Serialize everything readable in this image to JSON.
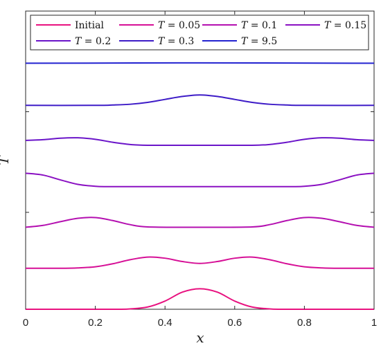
{
  "chart_data": {
    "type": "line",
    "xlabel": "x",
    "ylabel": "T",
    "xlim": [
      0,
      1
    ],
    "ylim": [
      0,
      8.0
    ],
    "x_ticks": [
      "0",
      "0.2",
      "0.4",
      "0.6",
      "0.8",
      "1"
    ],
    "y_tick_values": [
      2.6,
      5.3
    ],
    "grid": false,
    "legend_position": "top",
    "series": [
      {
        "name": "Initial",
        "color": "#e8117f",
        "x": [
          0,
          0.25,
          0.3,
          0.35,
          0.4,
          0.45,
          0.5,
          0.55,
          0.6,
          0.65,
          0.7,
          0.75,
          1
        ],
        "y": [
          0.0,
          0.0,
          0.01,
          0.06,
          0.22,
          0.46,
          0.55,
          0.46,
          0.22,
          0.06,
          0.01,
          0.0,
          0.0
        ]
      },
      {
        "name": "T = 0.05",
        "color": "#d60f96",
        "x": [
          0,
          0.1,
          0.15,
          0.2,
          0.25,
          0.3,
          0.35,
          0.4,
          0.45,
          0.5,
          0.55,
          0.6,
          0.65,
          0.7,
          0.75,
          0.8,
          0.85,
          0.9,
          1
        ],
        "y": [
          1.1,
          1.1,
          1.11,
          1.14,
          1.22,
          1.33,
          1.4,
          1.37,
          1.28,
          1.23,
          1.28,
          1.37,
          1.4,
          1.33,
          1.22,
          1.14,
          1.11,
          1.1,
          1.1
        ]
      },
      {
        "name": "T = 0.1",
        "color": "#b40fb0",
        "x": [
          0,
          0.05,
          0.1,
          0.15,
          0.2,
          0.25,
          0.3,
          0.35,
          0.5,
          0.65,
          0.7,
          0.75,
          0.8,
          0.85,
          0.9,
          0.95,
          1
        ],
        "y": [
          2.2,
          2.25,
          2.35,
          2.44,
          2.46,
          2.38,
          2.27,
          2.21,
          2.2,
          2.21,
          2.27,
          2.38,
          2.46,
          2.44,
          2.35,
          2.25,
          2.2
        ]
      },
      {
        "name": "T = 0.15",
        "color": "#8a10c2",
        "x": [
          0,
          0.05,
          0.1,
          0.15,
          0.2,
          0.25,
          0.5,
          0.75,
          0.8,
          0.85,
          0.9,
          0.95,
          1
        ],
        "y": [
          3.65,
          3.6,
          3.47,
          3.35,
          3.3,
          3.29,
          3.29,
          3.29,
          3.3,
          3.35,
          3.47,
          3.6,
          3.65
        ]
      },
      {
        "name": "T = 0.2",
        "color": "#6a14c9",
        "x": [
          0,
          0.05,
          0.1,
          0.15,
          0.2,
          0.25,
          0.3,
          0.35,
          0.5,
          0.65,
          0.7,
          0.75,
          0.8,
          0.85,
          0.9,
          0.95,
          1
        ],
        "y": [
          4.53,
          4.55,
          4.59,
          4.6,
          4.56,
          4.48,
          4.42,
          4.4,
          4.4,
          4.4,
          4.42,
          4.48,
          4.56,
          4.6,
          4.59,
          4.55,
          4.53
        ]
      },
      {
        "name": "T = 0.3",
        "color": "#3d1bc7",
        "x": [
          0,
          0.2,
          0.25,
          0.3,
          0.35,
          0.4,
          0.45,
          0.5,
          0.55,
          0.6,
          0.65,
          0.7,
          0.75,
          0.8,
          1
        ],
        "y": [
          5.47,
          5.47,
          5.48,
          5.5,
          5.55,
          5.63,
          5.71,
          5.75,
          5.71,
          5.63,
          5.55,
          5.5,
          5.48,
          5.47,
          5.47
        ]
      },
      {
        "name": "T = 9.5",
        "color": "#2222d0",
        "x": [
          0,
          0.5,
          1
        ],
        "y": [
          6.6,
          6.61,
          6.6
        ]
      }
    ]
  }
}
